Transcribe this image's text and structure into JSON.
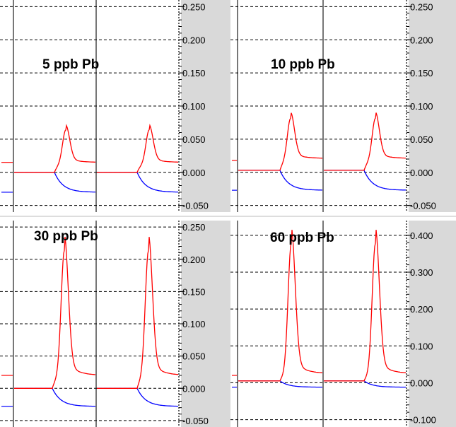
{
  "chart_data": [
    {
      "type": "line",
      "title": "5 ppb Pb",
      "ylim": [
        -0.06,
        0.26
      ],
      "yticks": [
        -0.05,
        0.0,
        0.05,
        0.1,
        0.15,
        0.2,
        0.25
      ],
      "ytick_labels": [
        "-0.050",
        "0.000",
        "0.050",
        "0.100",
        "0.150",
        "0.200",
        "0.250"
      ],
      "grid": true,
      "legend": "none",
      "colors": {
        "red": "#ff0000",
        "blue": "#0000ff"
      },
      "series": [
        {
          "color": "red",
          "baseline": 0.0,
          "peak_height": 0.065,
          "tail": 0.015
        },
        {
          "color": "blue",
          "baseline": 0.0,
          "tail": -0.03
        }
      ]
    },
    {
      "type": "line",
      "title": "10 ppb Pb",
      "ylim": [
        -0.06,
        0.26
      ],
      "yticks": [
        -0.05,
        0.0,
        0.05,
        0.1,
        0.15,
        0.2,
        0.25
      ],
      "ytick_labels": [
        "-0.050",
        "0.000",
        "0.050",
        "0.100",
        "0.150",
        "0.200",
        "0.250"
      ],
      "grid": true,
      "legend": "none",
      "colors": {
        "red": "#ff0000",
        "blue": "#0000ff"
      },
      "series": [
        {
          "color": "red",
          "baseline": 0.003,
          "peak_height": 0.08,
          "tail": 0.018
        },
        {
          "color": "blue",
          "baseline": 0.003,
          "tail": -0.027
        }
      ]
    },
    {
      "type": "line",
      "title": "30 ppb Pb",
      "ylim": [
        -0.06,
        0.26
      ],
      "yticks": [
        -0.05,
        0.0,
        0.05,
        0.1,
        0.15,
        0.2,
        0.25
      ],
      "ytick_labels": [
        "-0.050",
        "0.000",
        "0.050",
        "0.100",
        "0.150",
        "0.200",
        "0.250"
      ],
      "grid": true,
      "legend": "none",
      "colors": {
        "red": "#ff0000",
        "blue": "#0000ff"
      },
      "series": [
        {
          "color": "red",
          "baseline": 0.0,
          "peak_height": 0.215,
          "tail": 0.02
        },
        {
          "color": "blue",
          "baseline": 0.0,
          "tail": -0.028
        }
      ]
    },
    {
      "type": "line",
      "title": "60 ppb Pb",
      "ylim": [
        -0.12,
        0.44
      ],
      "yticks": [
        -0.1,
        0.0,
        0.1,
        0.2,
        0.3,
        0.4
      ],
      "ytick_labels": [
        "-0.100",
        "0.000",
        "0.100",
        "0.200",
        "0.300",
        "0.400"
      ],
      "grid": true,
      "legend": "none",
      "colors": {
        "red": "#ff0000",
        "blue": "#0000ff"
      },
      "series": [
        {
          "color": "red",
          "baseline": 0.005,
          "peak_height": 0.375,
          "tail": 0.02
        },
        {
          "color": "blue",
          "baseline": 0.005,
          "tail": -0.012
        }
      ]
    }
  ]
}
